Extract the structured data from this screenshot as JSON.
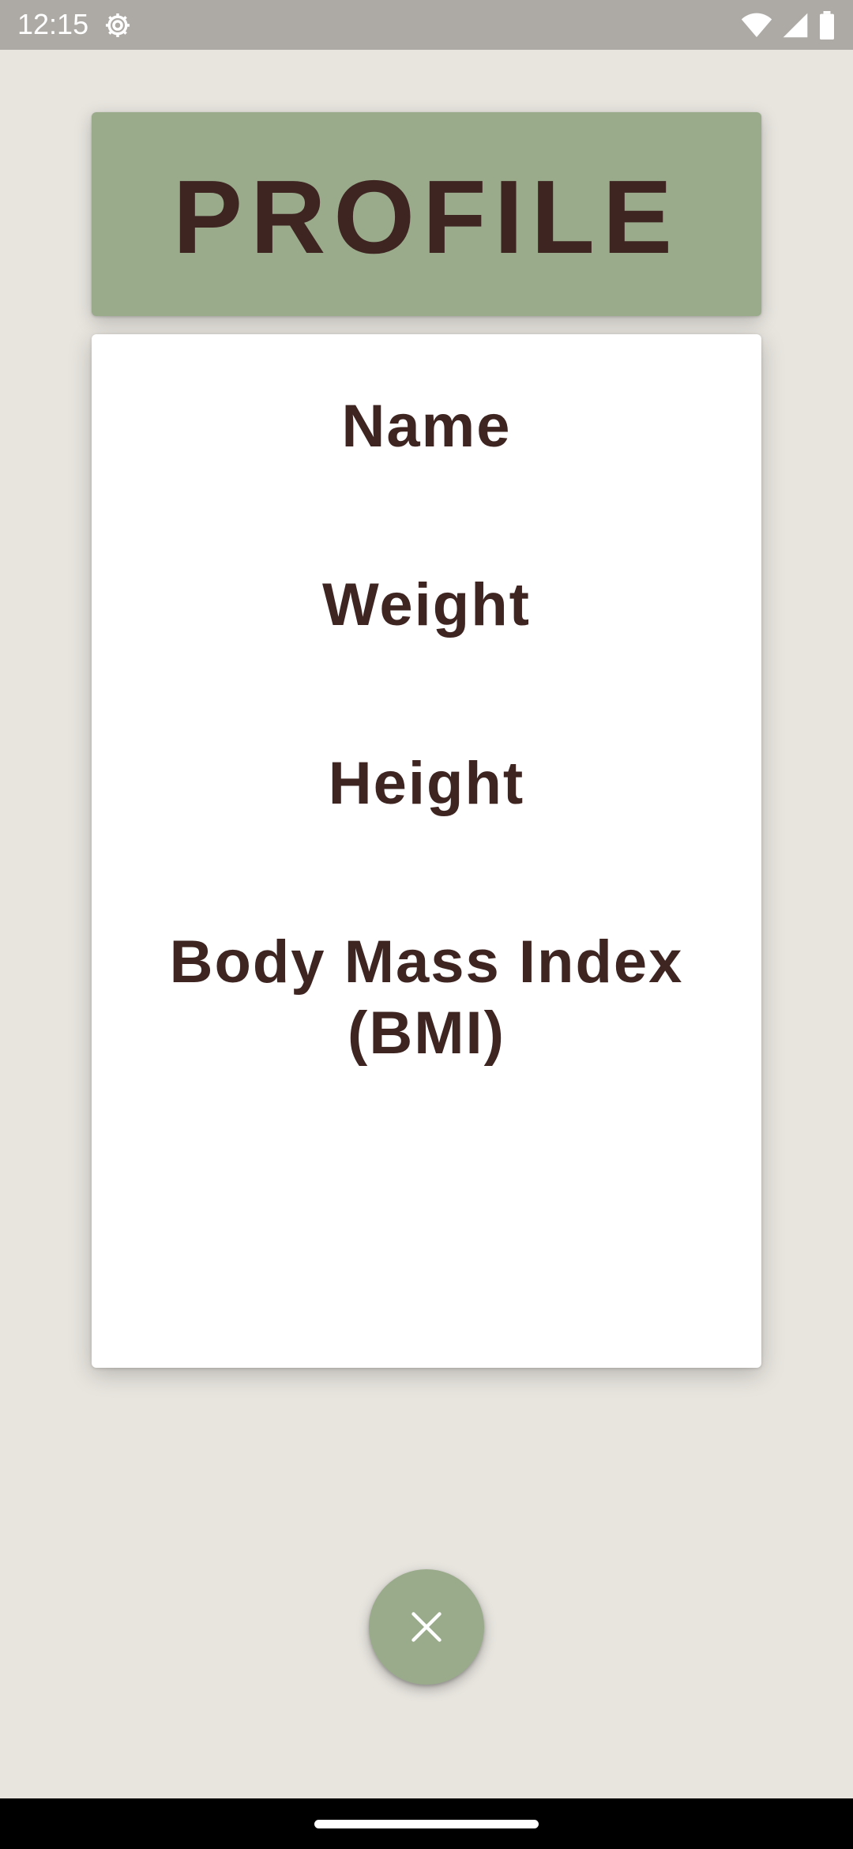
{
  "status_bar": {
    "time": "12:15",
    "icons": [
      "settings-gear-icon",
      "wifi-icon",
      "cell-signal-icon",
      "battery-icon"
    ]
  },
  "header": {
    "title": "PROFILE"
  },
  "profile_fields": {
    "name_label": "Name",
    "weight_label": "Weight",
    "height_label": "Height",
    "bmi_label_line1": "Body Mass Index",
    "bmi_label_line2": "(BMI)"
  },
  "fab": {
    "icon": "close-icon"
  },
  "colors": {
    "background": "#E8E5DF",
    "status_bar": "#ADAAA5",
    "accent_green": "#9AAB8C",
    "text_brown": "#3E2522",
    "card": "#FFFFFF",
    "nav_bar": "#000000"
  }
}
